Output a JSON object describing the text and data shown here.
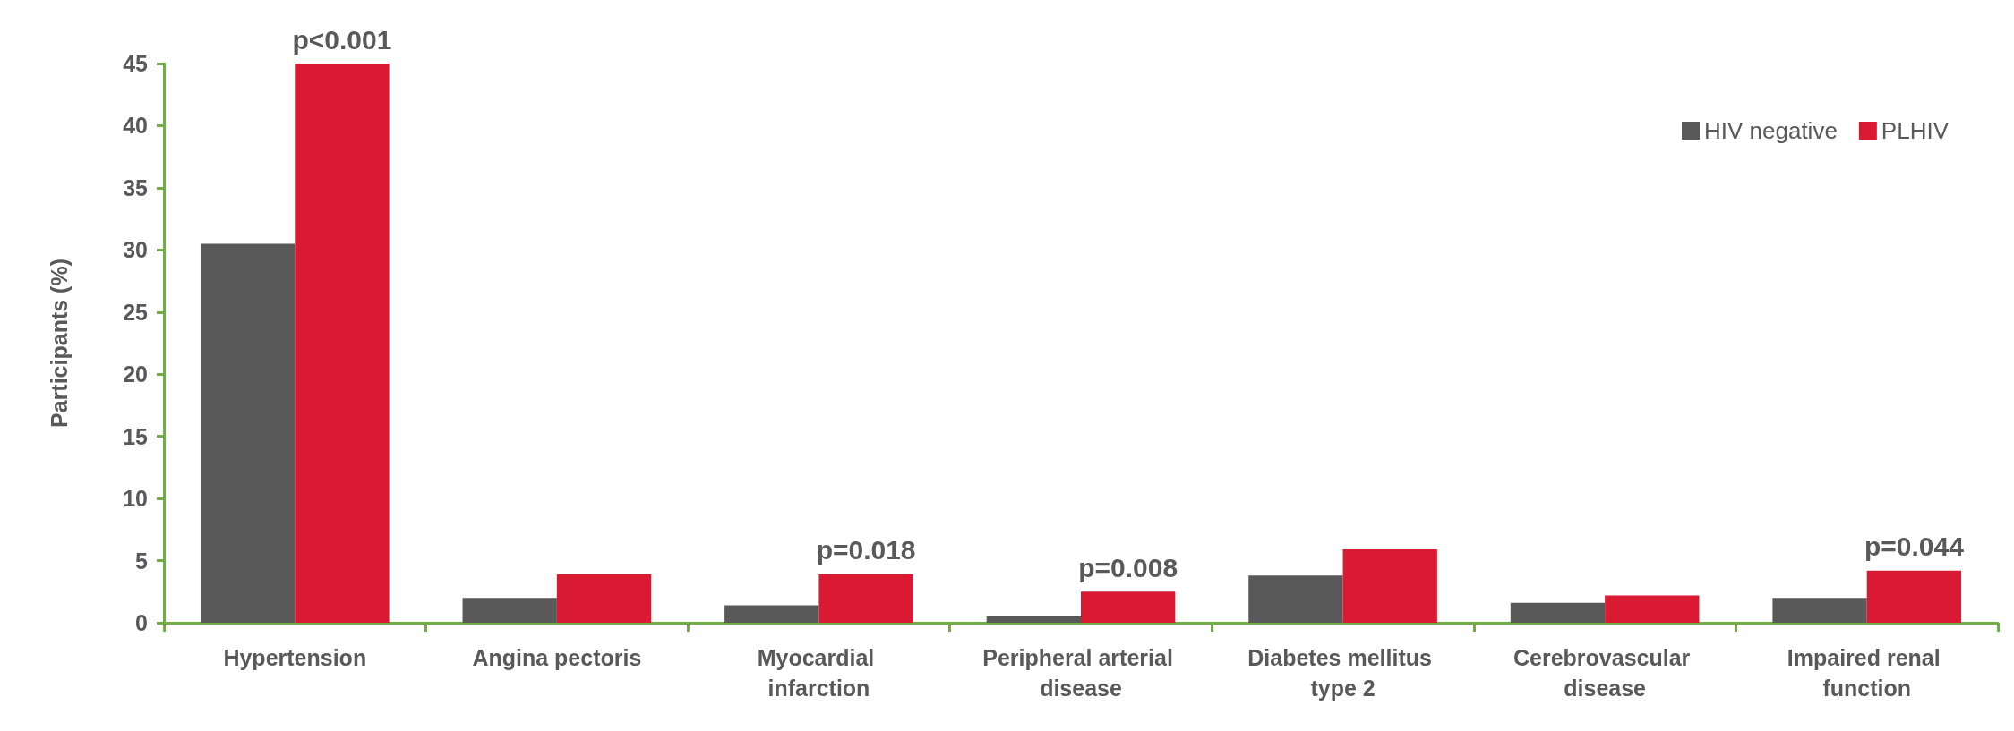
{
  "chart_data": {
    "type": "bar",
    "ylabel": "Participants (%)",
    "categories": [
      "Hypertension",
      "Angina pectoris",
      "Myocardial infarction",
      "Peripheral arterial disease",
      "Diabetes mellitus type 2",
      "Cerebrovascular disease",
      "Impaired renal function"
    ],
    "series": [
      {
        "name": "HIV negative",
        "color": "#595959",
        "values": [
          30.5,
          2.0,
          1.4,
          0.5,
          3.8,
          1.6,
          2.0
        ]
      },
      {
        "name": "PLHIV",
        "color": "#d91a32",
        "values": [
          45,
          3.9,
          3.9,
          2.5,
          5.9,
          2.2,
          4.2
        ]
      }
    ],
    "ylim": [
      0,
      45
    ],
    "yticks": [
      0,
      5,
      10,
      15,
      20,
      25,
      30,
      35,
      40,
      45
    ],
    "grid": false,
    "legend": "top right",
    "annotations": [
      {
        "text": "p<0.001",
        "x": "Hypertension",
        "y": 45
      },
      {
        "text": "p=0.018",
        "x": "Myocardial infarction",
        "y": 3.9
      },
      {
        "text": "p=0.008",
        "x": "Peripheral arterial disease",
        "y": 2.5
      },
      {
        "text": "p=0.044",
        "x": "Impaired renal function",
        "y": 4.2
      }
    ]
  }
}
